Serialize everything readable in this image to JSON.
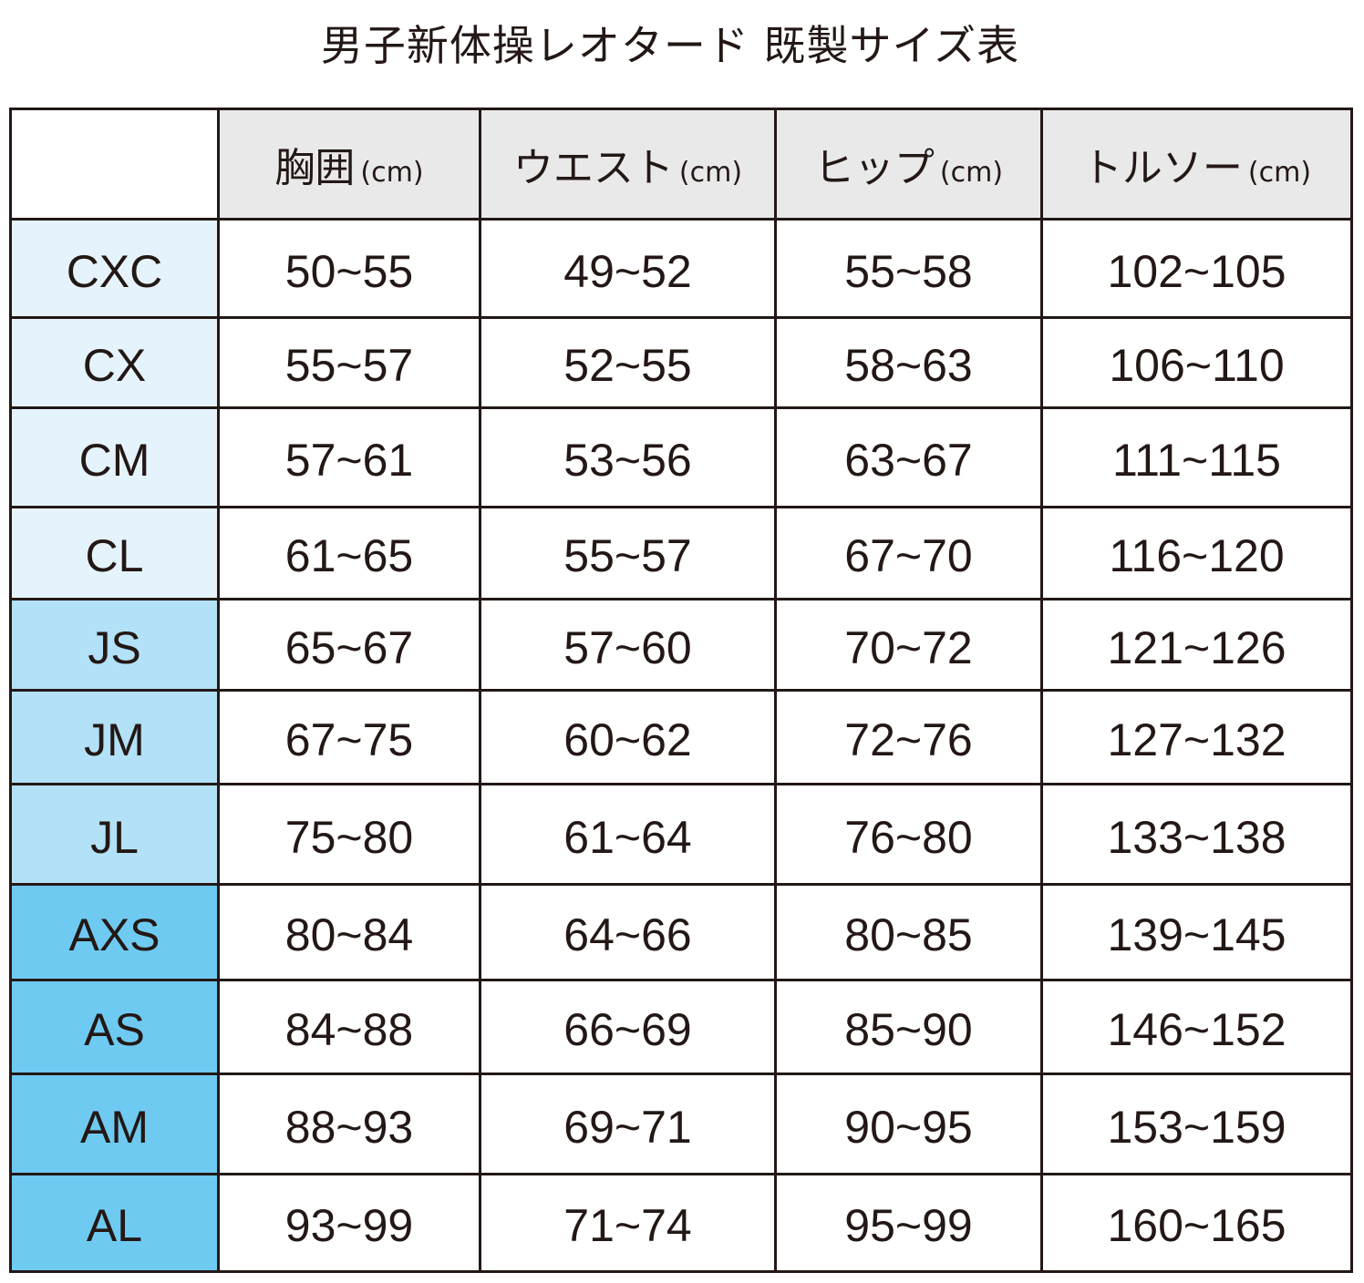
{
  "title": "男子新体操レオタード 既製サイズ表",
  "colors": {
    "border": "#231815",
    "header_bg": "#e9e9e9",
    "group_c": "#e5f4fc",
    "group_j": "#b3e1f7",
    "group_a": "#6fcaf2"
  },
  "columns": [
    {
      "label": "胸囲",
      "unit": "(cm)"
    },
    {
      "label": "ウエスト",
      "unit": "(cm)"
    },
    {
      "label": "ヒップ",
      "unit": "(cm)"
    },
    {
      "label": "トルソー",
      "unit": "(cm)"
    }
  ],
  "rows": [
    {
      "size": "CXC",
      "group": "c",
      "values": [
        "50~55",
        "49~52",
        "55~58",
        "102~105"
      ]
    },
    {
      "size": "CX",
      "group": "c",
      "values": [
        "55~57",
        "52~55",
        "58~63",
        "106~110"
      ]
    },
    {
      "size": "CM",
      "group": "c",
      "values": [
        "57~61",
        "53~56",
        "63~67",
        "111~115"
      ]
    },
    {
      "size": "CL",
      "group": "c",
      "values": [
        "61~65",
        "55~57",
        "67~70",
        "116~120"
      ]
    },
    {
      "size": "JS",
      "group": "j",
      "values": [
        "65~67",
        "57~60",
        "70~72",
        "121~126"
      ]
    },
    {
      "size": "JM",
      "group": "j",
      "values": [
        "67~75",
        "60~62",
        "72~76",
        "127~132"
      ]
    },
    {
      "size": "JL",
      "group": "j",
      "values": [
        "75~80",
        "61~64",
        "76~80",
        "133~138"
      ]
    },
    {
      "size": "AXS",
      "group": "a",
      "values": [
        "80~84",
        "64~66",
        "80~85",
        "139~145"
      ]
    },
    {
      "size": "AS",
      "group": "a",
      "values": [
        "84~88",
        "66~69",
        "85~90",
        "146~152"
      ]
    },
    {
      "size": "AM",
      "group": "a",
      "values": [
        "88~93",
        "69~71",
        "90~95",
        "153~159"
      ]
    },
    {
      "size": "AL",
      "group": "a",
      "values": [
        "93~99",
        "71~74",
        "95~99",
        "160~165"
      ]
    }
  ]
}
